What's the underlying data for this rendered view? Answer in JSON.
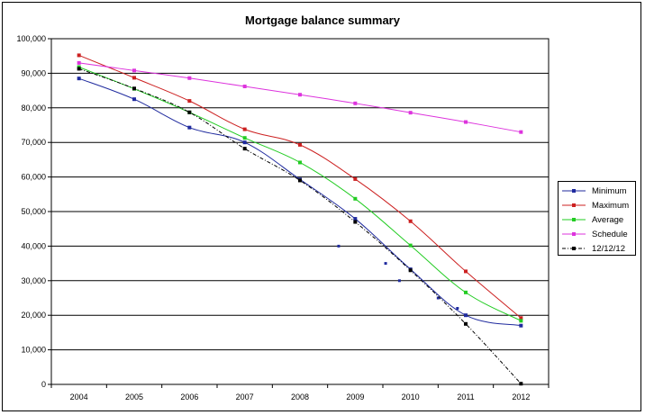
{
  "chart_data": {
    "type": "line",
    "title": "Mortgage balance summary",
    "xlabel": "",
    "ylabel": "",
    "categories": [
      "2004",
      "2005",
      "2006",
      "2007",
      "2008",
      "2009",
      "2010",
      "2011",
      "2012"
    ],
    "ylim": [
      0,
      100000
    ],
    "yticks": [
      0,
      10000,
      20000,
      30000,
      40000,
      50000,
      60000,
      70000,
      80000,
      90000,
      100000
    ],
    "ytick_labels": [
      "0",
      "10,000",
      "20,000",
      "30,000",
      "40,000",
      "50,000",
      "60,000",
      "70,000",
      "80,000",
      "90,000",
      "100,000"
    ],
    "grid": "horizontal",
    "legend_position": "right",
    "series": [
      {
        "name": "Minimum",
        "color": "#1f2a9e",
        "dash": "solid",
        "values": [
          88500,
          82500,
          74300,
          70000,
          59300,
          47900,
          33300,
          20000,
          17000
        ],
        "extra_points": [
          [
            4.7,
            40000
          ],
          [
            5.55,
            35000
          ],
          [
            5.8,
            30000
          ],
          [
            6.5,
            25000
          ],
          [
            6.85,
            22000
          ]
        ]
      },
      {
        "name": "Maximum",
        "color": "#cc2020",
        "dash": "solid",
        "values": [
          95200,
          88700,
          82000,
          73800,
          69300,
          59400,
          47200,
          32700,
          19200
        ]
      },
      {
        "name": "Average",
        "color": "#22cc22",
        "dash": "solid",
        "values": [
          91800,
          85500,
          78700,
          71300,
          64200,
          53700,
          40200,
          26600,
          18400
        ]
      },
      {
        "name": "Schedule",
        "color": "#dd33dd",
        "dash": "solid",
        "values": [
          93000,
          90800,
          88600,
          86200,
          83800,
          81300,
          78600,
          75900,
          73000
        ]
      },
      {
        "name": "12/12/12",
        "color": "#000000",
        "dash": "dashdot",
        "values": [
          91300,
          85600,
          78700,
          68200,
          59000,
          47000,
          33000,
          17500,
          200
        ]
      }
    ]
  }
}
